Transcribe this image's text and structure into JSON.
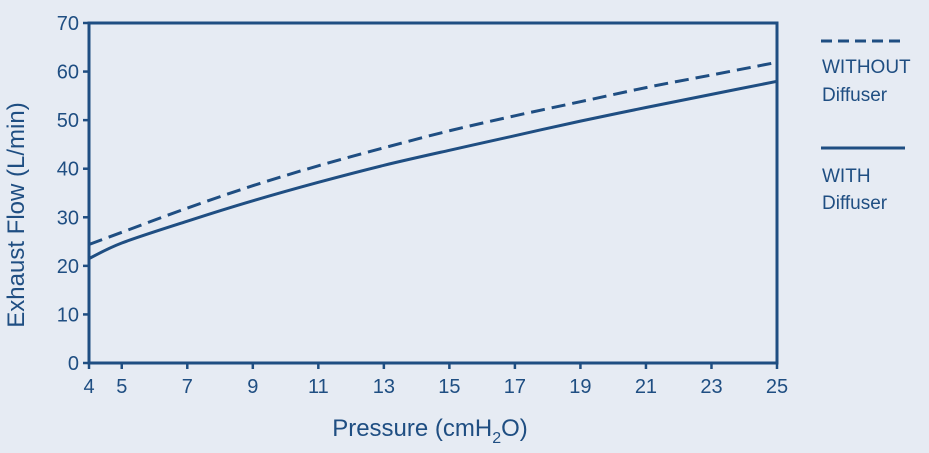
{
  "chart_data": {
    "type": "line",
    "title": "",
    "xlabel": {
      "main": "Pressure (cmH",
      "sub": "2",
      "tail": "O)"
    },
    "ylabel": "Exhaust Flow (L/min)",
    "xlim": [
      4,
      25
    ],
    "ylim": [
      0,
      70
    ],
    "xticks": [
      4,
      5,
      7,
      9,
      11,
      13,
      15,
      17,
      19,
      21,
      23,
      25
    ],
    "yticks": [
      0,
      10,
      20,
      30,
      40,
      50,
      60,
      70
    ],
    "x": [
      4,
      5,
      7,
      9,
      11,
      13,
      15,
      17,
      19,
      21,
      23,
      25
    ],
    "series": [
      {
        "name": "WITHOUT Diffuser",
        "legend_lines": [
          "WITHOUT",
          "Diffuser"
        ],
        "style": "dashed",
        "values": [
          24.4,
          26.9,
          31.9,
          36.5,
          40.6,
          44.3,
          47.8,
          50.9,
          53.8,
          56.7,
          59.3,
          61.9
        ]
      },
      {
        "name": "WITH Diffuser",
        "legend_lines": [
          "WITH",
          "Diffuser"
        ],
        "style": "solid",
        "values": [
          21.5,
          24.7,
          29.2,
          33.4,
          37.2,
          40.7,
          43.8,
          46.8,
          49.8,
          52.6,
          55.3,
          58.0
        ]
      }
    ],
    "grid": false,
    "legend_position": "right"
  },
  "colors": {
    "line": "#1f4e82",
    "background": "#e6ebf3"
  }
}
